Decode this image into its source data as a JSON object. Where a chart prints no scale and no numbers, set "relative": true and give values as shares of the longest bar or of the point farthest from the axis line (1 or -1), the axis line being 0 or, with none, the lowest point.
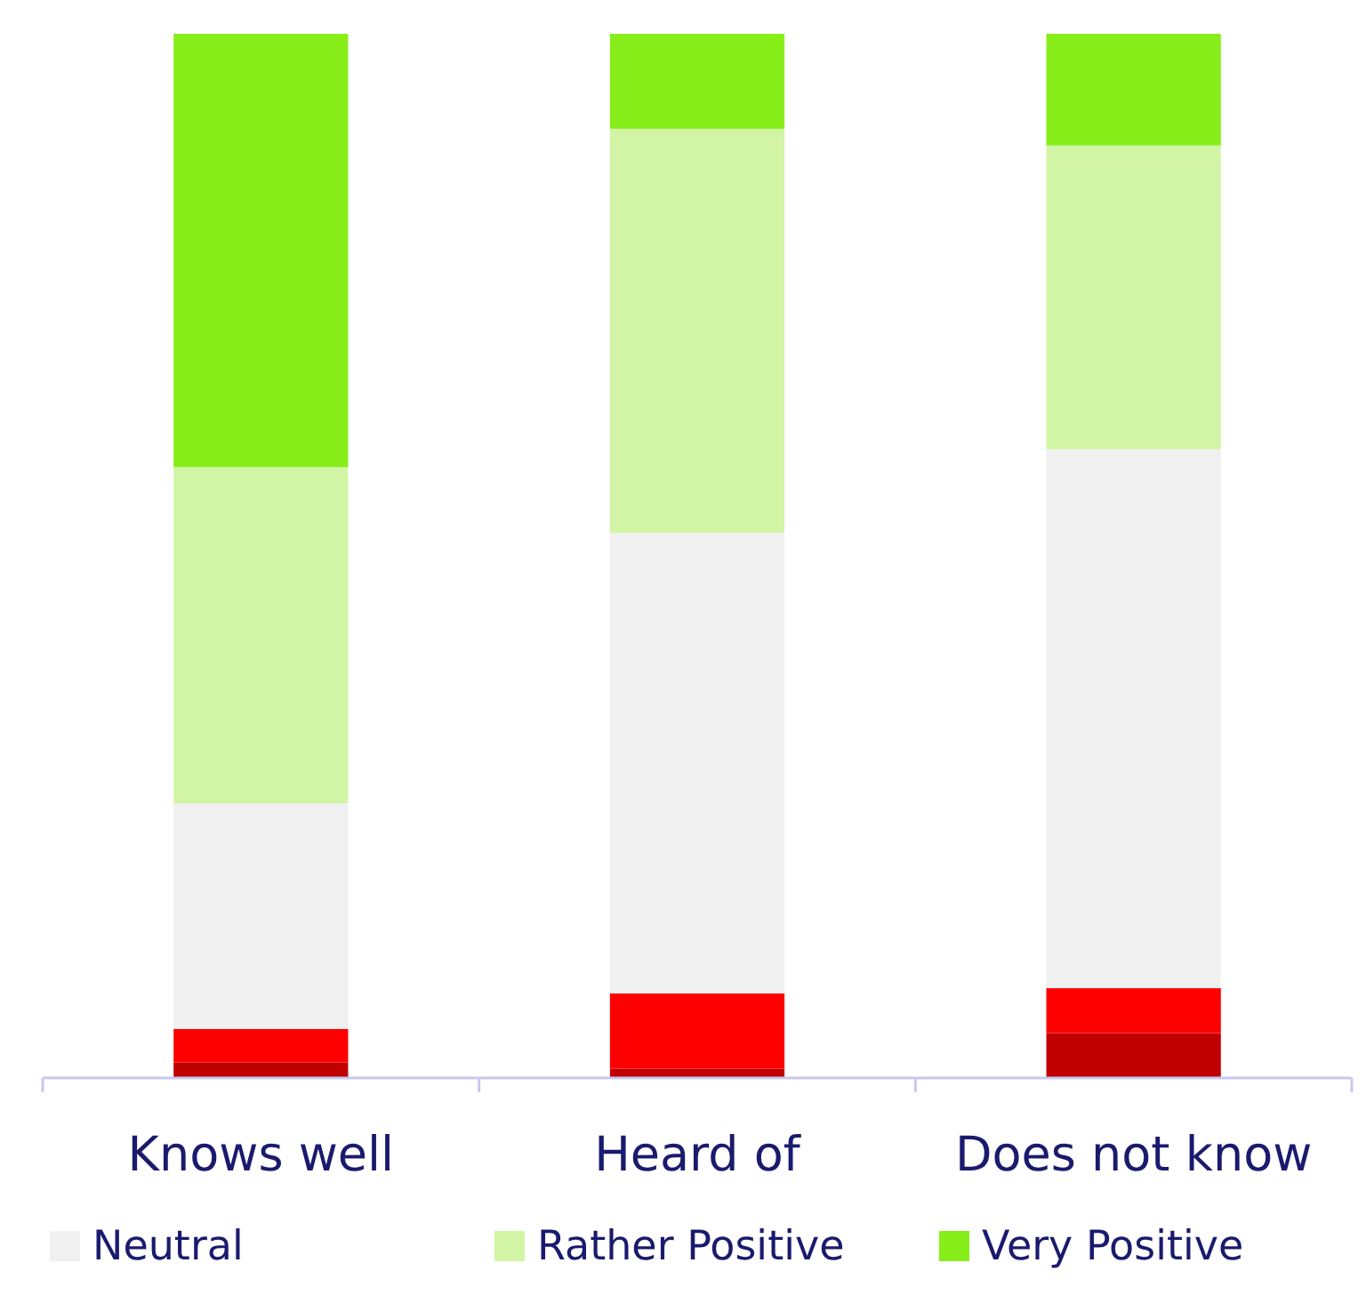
{
  "chart_data": {
    "type": "bar",
    "stacked": true,
    "relative": true,
    "categories": [
      "Knows well",
      "Heard of",
      "Does not know"
    ],
    "series": [
      {
        "color": "#c00000",
        "values": [
          0.015,
          0.009,
          0.043
        ]
      },
      {
        "color": "#ff0000",
        "values": [
          0.032,
          0.072,
          0.043
        ]
      },
      {
        "name": "Neutral",
        "color": "#f0f0f0",
        "values": [
          0.216,
          0.441,
          0.516
        ]
      },
      {
        "name": "Rather Positive",
        "color": "#d2f5a5",
        "values": [
          0.322,
          0.387,
          0.291
        ]
      },
      {
        "name": "Very Positive",
        "color": "#88ee1a",
        "values": [
          0.415,
          0.091,
          0.107
        ]
      }
    ],
    "legend": "bottom"
  }
}
